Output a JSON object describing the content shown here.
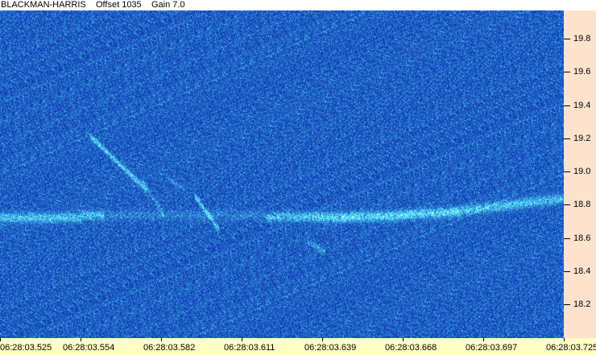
{
  "header": {
    "window": "BLACKMAN-HARRIS",
    "offset": "Offset 1035",
    "gain": "Gain 7.0"
  },
  "y_axis": {
    "ticks": [
      "19.8",
      "19.6",
      "19.4",
      "19.2",
      "19.0",
      "18.8",
      "18.6",
      "18.4",
      "18.2"
    ]
  },
  "x_axis": {
    "ticks": [
      "06:28:03.525",
      "06:28:03.554",
      "06:28:03.582",
      "06:28:03.611",
      "06:28:03.639",
      "06:28:03.668",
      "06:28:03.697",
      "06:28:03.725"
    ]
  },
  "colors": {
    "background_blue": "#0c3cc0",
    "y_axis_bg": "#fde3cc",
    "x_axis_bg": "#ffffc4"
  }
}
